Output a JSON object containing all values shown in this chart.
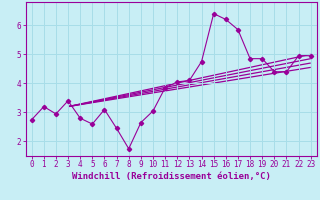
{
  "xlabel": "Windchill (Refroidissement éolien,°C)",
  "bg_color": "#c8eef5",
  "line_color": "#990099",
  "grid_color": "#a8dde8",
  "xlim": [
    -0.5,
    23.5
  ],
  "ylim": [
    1.5,
    6.8
  ],
  "yticks": [
    2,
    3,
    4,
    5,
    6
  ],
  "xticks": [
    0,
    1,
    2,
    3,
    4,
    5,
    6,
    7,
    8,
    9,
    10,
    11,
    12,
    13,
    14,
    15,
    16,
    17,
    18,
    19,
    20,
    21,
    22,
    23
  ],
  "main_x": [
    0,
    1,
    2,
    3,
    4,
    5,
    6,
    7,
    8,
    9,
    10,
    11,
    12,
    13,
    14,
    15,
    16,
    17,
    18,
    19,
    20,
    21,
    22,
    23
  ],
  "main_y": [
    2.75,
    3.2,
    2.95,
    3.4,
    2.8,
    2.6,
    3.1,
    2.45,
    1.75,
    2.65,
    3.05,
    3.85,
    4.05,
    4.1,
    4.75,
    6.4,
    6.2,
    5.85,
    4.85,
    4.85,
    4.4,
    4.4,
    4.95,
    4.95
  ],
  "reg_lines": [
    [
      [
        3,
        23
      ],
      [
        3.2,
        5.0
      ]
    ],
    [
      [
        3,
        23
      ],
      [
        3.2,
        4.85
      ]
    ],
    [
      [
        3,
        23
      ],
      [
        3.2,
        4.7
      ]
    ],
    [
      [
        3,
        23
      ],
      [
        3.2,
        4.55
      ]
    ]
  ],
  "tick_fontsize": 5.5,
  "label_fontsize": 6.5
}
